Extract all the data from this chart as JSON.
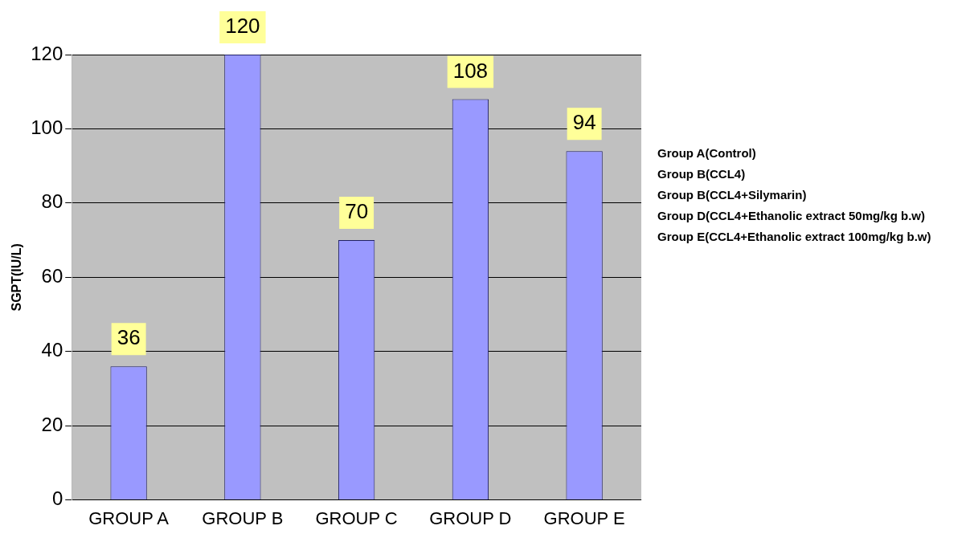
{
  "chart_data": {
    "type": "bar",
    "ylabel": "SGPT(IU/L)",
    "categories": [
      "GROUP A",
      "GROUP B",
      "GROUP C",
      "GROUP D",
      "GROUP E"
    ],
    "values": [
      36,
      120,
      70,
      108,
      94
    ],
    "color": "#9999ff",
    "ylim": [
      0,
      120
    ],
    "yticks": [
      0,
      20,
      40,
      60,
      80,
      100,
      120
    ],
    "grid": "y",
    "data_labels": true,
    "annotations": [
      "Group A(Control)",
      "Group B(CCL4)",
      "Group B(CCL4+Silymarin)",
      "Group D(CCL4+Ethanolic extract 50mg/kg b.w)",
      "Group E(CCL4+Ethanolic extract 100mg/kg b.w)"
    ]
  }
}
